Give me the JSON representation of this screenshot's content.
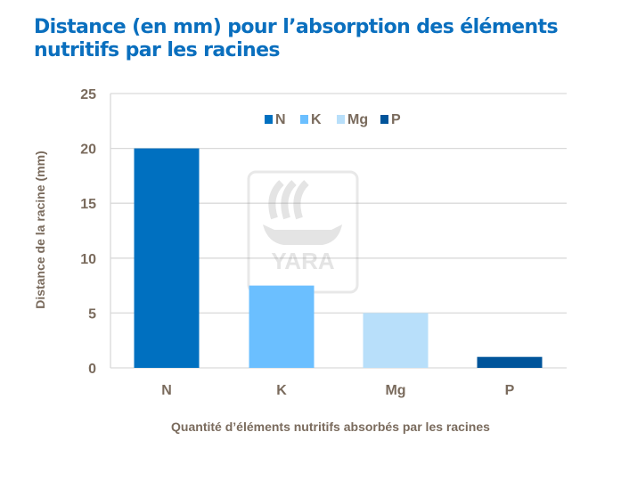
{
  "title": "Distance (en mm) pour l’absorption des éléments nutritifs par les racines",
  "watermark": "YARA",
  "chart_data": {
    "type": "bar",
    "categories": [
      "N",
      "K",
      "Mg",
      "P"
    ],
    "values": [
      20,
      7.5,
      5,
      1
    ],
    "colors": [
      "#0070c0",
      "#6bbfff",
      "#b8dffa",
      "#00549a"
    ],
    "xlabel": "Quantité d’éléments nutritifs absorbés par les racines",
    "ylabel": "Distance de la racine (mm)",
    "ylim": [
      0,
      25
    ],
    "yticks": [
      0,
      5,
      10,
      15,
      20,
      25
    ],
    "grid": true,
    "legend": {
      "position": "top-center",
      "entries": [
        "N",
        "K",
        "Mg",
        "P"
      ]
    }
  }
}
